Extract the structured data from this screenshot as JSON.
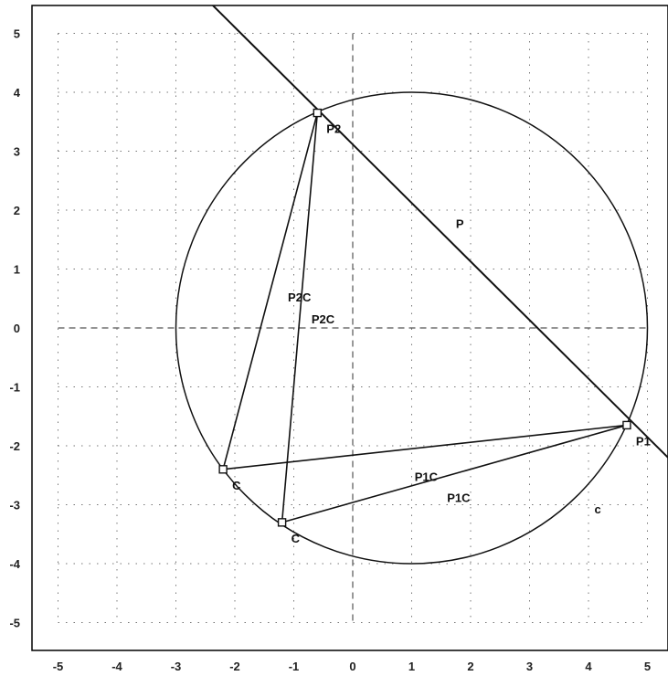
{
  "chart_data": {
    "type": "scatter",
    "title": "",
    "xlabel": "",
    "ylabel": "",
    "xlim": [
      -5.5,
      5.5
    ],
    "ylim": [
      -5.5,
      5.5
    ],
    "x_ticks": [
      -5,
      -4,
      -3,
      -2,
      -1,
      0,
      1,
      2,
      3,
      4,
      5
    ],
    "y_ticks": [
      -5,
      -4,
      -3,
      -2,
      -1,
      0,
      1,
      2,
      3,
      4,
      5
    ],
    "grid": "dotted",
    "axes_lines": "dashed",
    "circle": {
      "label": "c",
      "center": [
        1,
        0
      ],
      "radius": 4,
      "label_pos": [
        4.1,
        -3.15
      ]
    },
    "line_p": {
      "label": "P",
      "from": [
        -2.4,
        5.5
      ],
      "to": [
        5.5,
        -2.35
      ],
      "label_pos": [
        1.75,
        1.7
      ]
    },
    "points": [
      {
        "label": "P1",
        "x": 4.65,
        "y": -1.65
      },
      {
        "label": "P2",
        "x": -0.6,
        "y": 3.65
      },
      {
        "label": "C",
        "x": -2.2,
        "y": -2.4
      },
      {
        "label": "C",
        "x": -1.2,
        "y": -3.3
      }
    ],
    "segments": [
      {
        "from": 1,
        "to": 2
      },
      {
        "from": 1,
        "to": 3
      },
      {
        "from": 0,
        "to": 2
      },
      {
        "from": 0,
        "to": 3
      }
    ],
    "segment_labels": [
      {
        "text": "P2C",
        "x": -1.1,
        "y": 0.45
      },
      {
        "text": "P2C",
        "x": -0.7,
        "y": 0.08
      },
      {
        "text": "P1C",
        "x": 1.05,
        "y": -2.6
      },
      {
        "text": "P1C",
        "x": 1.6,
        "y": -2.95
      }
    ]
  }
}
